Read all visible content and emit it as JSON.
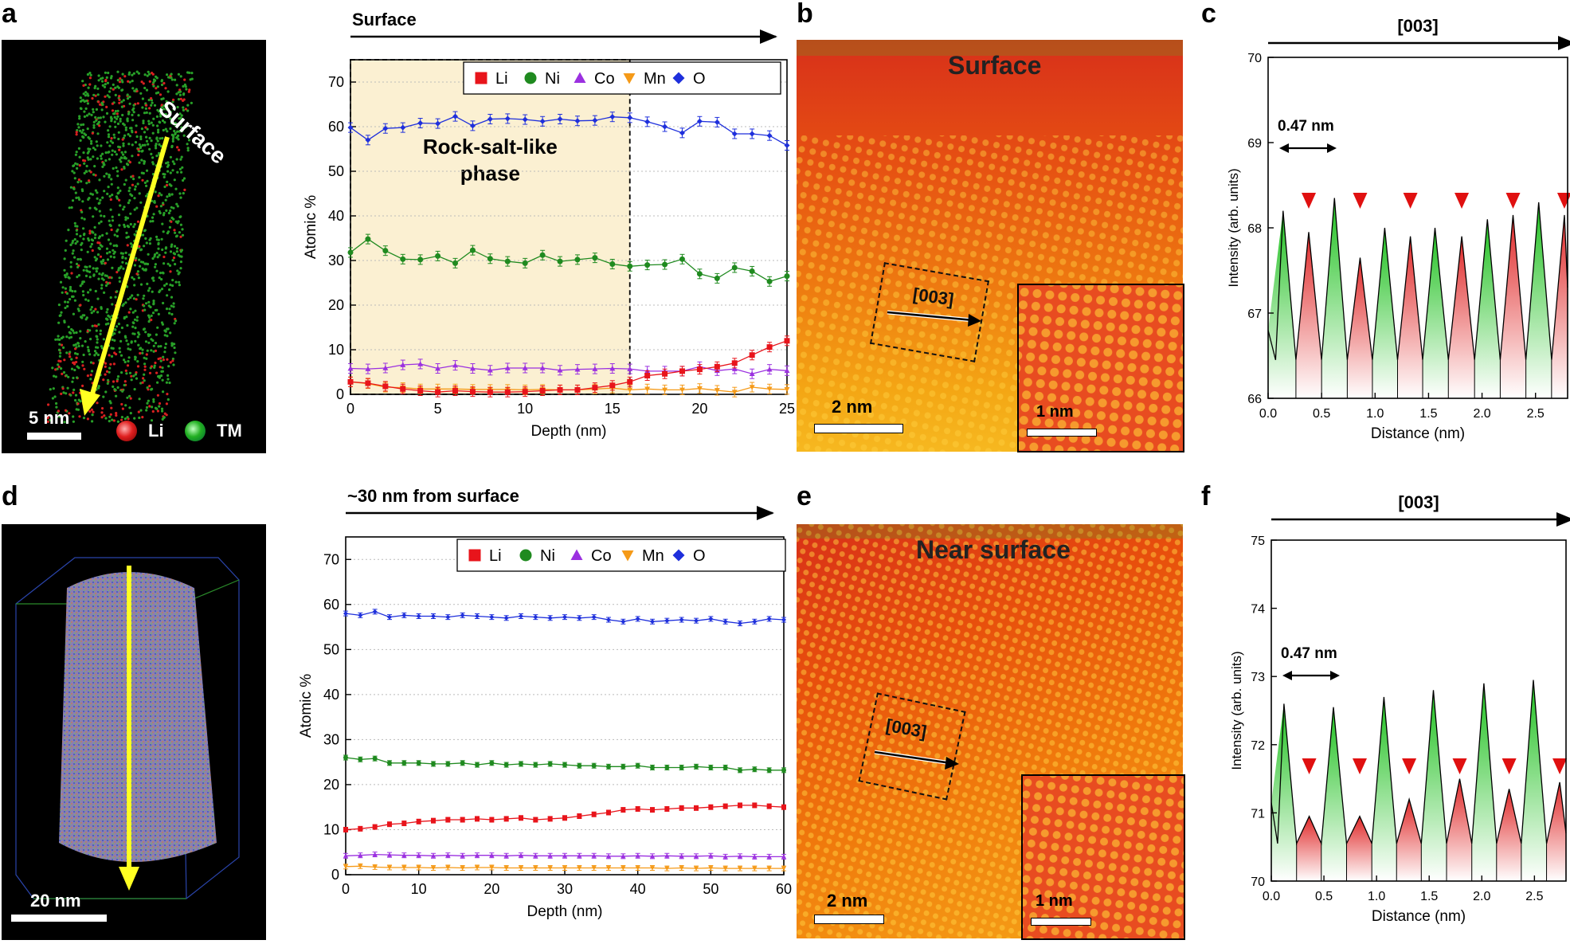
{
  "panels": {
    "a": "a",
    "b": "b",
    "c": "c",
    "d": "d",
    "e": "e",
    "f": "f"
  },
  "apt_top": {
    "surface_label": "Surface",
    "scalebar": "5 nm",
    "legend": [
      {
        "label": "Li",
        "color": "#e02020"
      },
      {
        "label": "TM",
        "color": "#22b022"
      }
    ],
    "bg": "#000000"
  },
  "apt_bottom": {
    "scalebar": "20 nm",
    "bg": "#000000"
  },
  "stem_top": {
    "title": "Surface",
    "direction": "[003]",
    "scalebar": "2 nm",
    "inset_scalebar": "1 nm"
  },
  "stem_bottom": {
    "title": "Near surface",
    "direction": "[003]",
    "scalebar": "2 nm",
    "inset_scalebar": "1 nm"
  },
  "colors": {
    "Li": "#e8141b",
    "Ni": "#1f8a1f",
    "Co": "#9b30e0",
    "Mn": "#f59a18",
    "O": "#1e2fdc"
  },
  "chart_data": [
    {
      "id": "top-composition",
      "type": "line",
      "title": "Surface",
      "xlabel": "Depth (nm)",
      "ylabel": "Atomic %",
      "xlim": [
        0,
        25
      ],
      "ylim": [
        0,
        75
      ],
      "xticks": [
        0,
        5,
        10,
        15,
        20,
        25
      ],
      "yticks": [
        0,
        10,
        20,
        30,
        40,
        50,
        60,
        70
      ],
      "shaded_region": {
        "x": [
          0,
          16
        ],
        "label": "Rock-salt-like phase"
      },
      "legend": [
        "Li",
        "Ni",
        "Co",
        "Mn",
        "O"
      ],
      "x": [
        0,
        1,
        2,
        3,
        4,
        5,
        6,
        7,
        8,
        9,
        10,
        11,
        12,
        13,
        14,
        15,
        16,
        17,
        18,
        19,
        20,
        21,
        22,
        23,
        24,
        25
      ],
      "series": [
        {
          "name": "O",
          "values": [
            59.8,
            57,
            59.6,
            59.8,
            60.8,
            60.7,
            62.3,
            60.2,
            61.7,
            61.8,
            61.6,
            61.2,
            61.7,
            61.3,
            61.4,
            62.2,
            62.0,
            61.1,
            60.0,
            58.6,
            61.2,
            61.0,
            58.4,
            58.4,
            58.0,
            55.8
          ]
        },
        {
          "name": "Ni",
          "values": [
            31.8,
            34.8,
            32.2,
            30.3,
            30.2,
            31.0,
            29.4,
            32.3,
            30.4,
            29.8,
            29.4,
            31.2,
            29.8,
            30.2,
            30.6,
            29.2,
            28.7,
            29.0,
            29.1,
            30.3,
            27.0,
            26.0,
            28.4,
            27.6,
            25.3,
            26.5
          ]
        },
        {
          "name": "Co",
          "values": [
            5.8,
            5.7,
            5.9,
            6.6,
            6.8,
            5.8,
            6.5,
            5.8,
            5.4,
            5.9,
            5.9,
            5.9,
            5.4,
            5.6,
            5.7,
            5.8,
            5.7,
            5.2,
            5.2,
            5.2,
            6.2,
            5.3,
            5.7,
            4.6,
            5.6,
            5.3
          ]
        },
        {
          "name": "Mn",
          "values": [
            2.8,
            2.4,
            1.6,
            1.5,
            1.2,
            1.2,
            1.2,
            1.1,
            1.1,
            1.1,
            1.0,
            1.1,
            1.0,
            1.0,
            1.2,
            1.4,
            1.0,
            1.2,
            1.0,
            1.0,
            1.3,
            0.9,
            0.5,
            1.6,
            1.2,
            1.1
          ]
        },
        {
          "name": "Li",
          "values": [
            2.8,
            2.5,
            1.8,
            1.2,
            0.8,
            0.5,
            0.8,
            0.6,
            0.5,
            0.5,
            0.6,
            0.8,
            1.0,
            1.0,
            1.5,
            2.0,
            2.8,
            4.2,
            4.6,
            5.2,
            5.6,
            6.2,
            7.0,
            8.8,
            10.6,
            12.0
          ]
        }
      ]
    },
    {
      "id": "top-intensity",
      "type": "area",
      "title": "[003]",
      "xlabel": "Distance (nm)",
      "ylabel": "Intensity (arb. units)",
      "xlim": [
        0,
        2.8
      ],
      "ylim": [
        66,
        70
      ],
      "xticks": [
        0.0,
        0.5,
        1.0,
        1.5,
        2.0,
        2.5
      ],
      "yticks": [
        66,
        67,
        68,
        69,
        70
      ],
      "annotation": "0.47 nm",
      "peaks_green": [
        [
          0.14,
          68.2
        ],
        [
          0.62,
          68.35
        ],
        [
          1.09,
          68.0
        ],
        [
          1.56,
          68.0
        ],
        [
          2.05,
          68.1
        ],
        [
          2.53,
          68.3
        ]
      ],
      "peaks_red": [
        [
          0.38,
          67.95
        ],
        [
          0.86,
          67.65
        ],
        [
          1.33,
          67.9
        ],
        [
          1.81,
          67.9
        ],
        [
          2.29,
          68.15
        ],
        [
          2.77,
          68.15
        ]
      ]
    },
    {
      "id": "bottom-composition",
      "type": "line",
      "title": "~30 nm from surface",
      "xlabel": "Depth (nm)",
      "ylabel": "Atomic %",
      "xlim": [
        0,
        60
      ],
      "ylim": [
        0,
        75
      ],
      "xticks": [
        0,
        10,
        20,
        30,
        40,
        50,
        60
      ],
      "yticks": [
        0,
        10,
        20,
        30,
        40,
        50,
        60,
        70
      ],
      "legend": [
        "Li",
        "Ni",
        "Co",
        "Mn",
        "O"
      ],
      "x": [
        0,
        2,
        4,
        6,
        8,
        10,
        12,
        14,
        16,
        18,
        20,
        22,
        24,
        26,
        28,
        30,
        32,
        34,
        36,
        38,
        40,
        42,
        44,
        46,
        48,
        50,
        52,
        54,
        56,
        58,
        60
      ],
      "series": [
        {
          "name": "O",
          "values": [
            58.0,
            57.6,
            58.4,
            57.2,
            57.6,
            57.4,
            57.4,
            57.2,
            57.6,
            57.4,
            57.2,
            57.0,
            57.4,
            57.2,
            57.0,
            57.2,
            57.0,
            57.2,
            56.6,
            56.2,
            56.8,
            56.2,
            56.4,
            56.6,
            56.4,
            56.8,
            56.2,
            55.8,
            56.2,
            56.8,
            56.6
          ]
        },
        {
          "name": "Ni",
          "values": [
            26.0,
            25.6,
            25.8,
            24.8,
            24.8,
            24.8,
            24.6,
            24.6,
            24.8,
            24.4,
            24.8,
            24.4,
            24.6,
            24.4,
            24.6,
            24.4,
            24.2,
            24.2,
            24.0,
            24.0,
            24.2,
            23.8,
            23.8,
            23.8,
            24.0,
            23.8,
            23.8,
            23.2,
            23.4,
            23.2,
            23.2
          ]
        },
        {
          "name": "Li",
          "values": [
            10.0,
            10.2,
            10.6,
            11.2,
            11.4,
            11.8,
            12.0,
            12.2,
            12.2,
            12.4,
            12.2,
            12.4,
            12.6,
            12.2,
            12.4,
            12.6,
            13.0,
            13.4,
            13.8,
            14.4,
            14.6,
            14.4,
            14.6,
            14.8,
            14.8,
            15.0,
            15.2,
            15.4,
            15.4,
            15.2,
            15.0
          ]
        },
        {
          "name": "Co",
          "values": [
            4.2,
            4.3,
            4.5,
            4.4,
            4.3,
            4.3,
            4.2,
            4.3,
            4.2,
            4.3,
            4.3,
            4.2,
            4.3,
            4.2,
            4.2,
            4.2,
            4.2,
            4.2,
            4.1,
            4.1,
            4.2,
            4.1,
            4.2,
            4.1,
            4.1,
            4.2,
            4.0,
            4.1,
            4.0,
            4.0,
            4.0
          ]
        },
        {
          "name": "Mn",
          "values": [
            1.8,
            1.9,
            1.7,
            1.6,
            1.6,
            1.6,
            1.5,
            1.6,
            1.5,
            1.6,
            1.6,
            1.5,
            1.5,
            1.5,
            1.5,
            1.5,
            1.5,
            1.5,
            1.5,
            1.5,
            1.5,
            1.5,
            1.4,
            1.5,
            1.4,
            1.5,
            1.4,
            1.4,
            1.4,
            1.4,
            1.4
          ]
        }
      ]
    },
    {
      "id": "bottom-intensity",
      "type": "area",
      "title": "[003]",
      "xlabel": "Distance (nm)",
      "ylabel": "Intensity (arb. units)",
      "xlim": [
        0,
        2.8
      ],
      "ylim": [
        70,
        75
      ],
      "xticks": [
        0.0,
        0.5,
        1.0,
        1.5,
        2.0,
        2.5
      ],
      "yticks": [
        70,
        71,
        72,
        73,
        74,
        75
      ],
      "annotation": "0.47 nm",
      "peaks_green": [
        [
          0.12,
          72.6
        ],
        [
          0.59,
          72.55
        ],
        [
          1.07,
          72.7
        ],
        [
          1.54,
          72.8
        ],
        [
          2.02,
          72.9
        ],
        [
          2.49,
          72.95
        ]
      ],
      "peaks_red": [
        [
          0.36,
          70.95
        ],
        [
          0.84,
          70.95
        ],
        [
          1.31,
          71.2
        ],
        [
          1.79,
          71.5
        ],
        [
          2.26,
          71.35
        ],
        [
          2.74,
          71.45
        ]
      ]
    }
  ]
}
